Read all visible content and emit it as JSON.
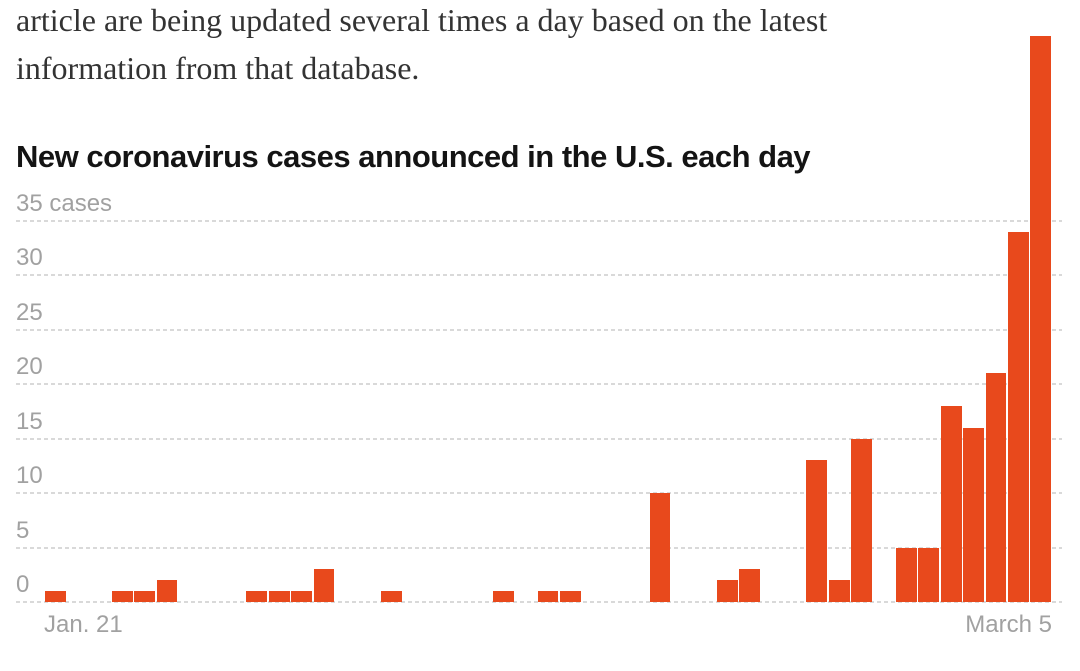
{
  "article": {
    "lines": [
      "article are being updated several times a day based on the latest",
      "information from that database."
    ]
  },
  "chart": {
    "title": "New coronavirus cases announced in the U.S. each day",
    "x_axis": {
      "start_label": "Jan. 21",
      "end_label": "March 5"
    },
    "y_axis": {
      "unit_label": "35 cases",
      "ticks": [
        35,
        30,
        25,
        20,
        15,
        10,
        5,
        0
      ]
    },
    "colors": {
      "bar": "#e8491c",
      "gridline": "#d9d9d9",
      "axis_text": "#a1a1a1",
      "title_text": "#141414",
      "body_text": "#333333"
    }
  },
  "chart_data": {
    "type": "bar",
    "title": "New coronavirus cases announced in the U.S. each day",
    "ylabel": "cases",
    "ylim": [
      0,
      35
    ],
    "grid": "dashed horizontal, labels above lines",
    "legend": "none",
    "x_tick_labels_visible": [
      "Jan. 21",
      "March 5"
    ],
    "last_bar_overflows_top": true,
    "x": [
      "Jan. 21",
      "Jan. 22",
      "Jan. 23",
      "Jan. 24",
      "Jan. 25",
      "Jan. 26",
      "Jan. 27",
      "Jan. 28",
      "Jan. 29",
      "Jan. 30",
      "Jan. 31",
      "Feb. 1",
      "Feb. 2",
      "Feb. 3",
      "Feb. 4",
      "Feb. 5",
      "Feb. 6",
      "Feb. 7",
      "Feb. 8",
      "Feb. 9",
      "Feb. 10",
      "Feb. 11",
      "Feb. 12",
      "Feb. 13",
      "Feb. 14",
      "Feb. 15",
      "Feb. 16",
      "Feb. 17",
      "Feb. 18",
      "Feb. 19",
      "Feb. 20",
      "Feb. 21",
      "Feb. 22",
      "Feb. 23",
      "Feb. 24",
      "Feb. 25",
      "Feb. 26",
      "Feb. 27",
      "Feb. 28",
      "Feb. 29",
      "March 1",
      "March 2",
      "March 3",
      "March 4",
      "March 5"
    ],
    "values": [
      1,
      0,
      0,
      1,
      1,
      2,
      0,
      0,
      0,
      1,
      1,
      1,
      3,
      0,
      0,
      1,
      0,
      0,
      0,
      0,
      1,
      0,
      1,
      1,
      0,
      0,
      0,
      10,
      0,
      0,
      2,
      3,
      0,
      0,
      13,
      2,
      15,
      0,
      5,
      5,
      18,
      16,
      21,
      34,
      52
    ]
  }
}
